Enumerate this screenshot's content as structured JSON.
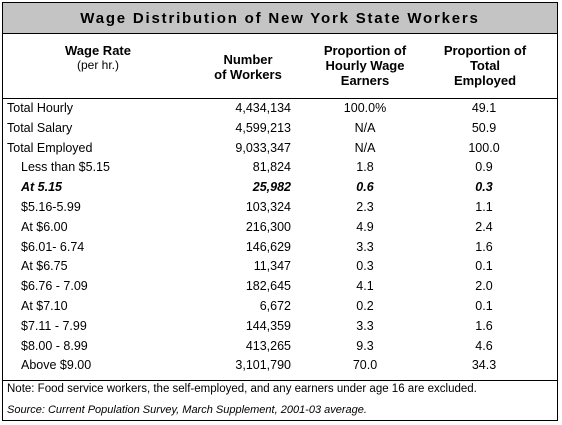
{
  "title": "Wage Distribution of  New York State Workers",
  "headers": {
    "col1": "Wage Rate",
    "col1_sub": "(per hr.)",
    "col2_line1": "Number",
    "col2_line2": "of Workers",
    "col3_line1": "Proportion of",
    "col3_line2": "Hourly Wage",
    "col3_line3": "Earners",
    "col4_line1": "Proportion of",
    "col4_line2": "Total",
    "col4_line3": "Employed"
  },
  "rows": [
    {
      "label": "Total Hourly",
      "workers": "4,434,134",
      "hourly": "100.0%",
      "total": "49.1"
    },
    {
      "label": "Total Salary",
      "workers": "4,599,213",
      "hourly": "N/A",
      "total": "50.9"
    },
    {
      "label": "Total Employed",
      "workers": "9,033,347",
      "hourly": "N/A",
      "total": "100.0"
    },
    {
      "label": "Less than $5.15",
      "workers": "81,824",
      "hourly": "1.8",
      "total": "0.9"
    },
    {
      "label": "At 5.15",
      "workers": "25,982",
      "hourly": "0.6",
      "total": "0.3"
    },
    {
      "label": "$5.16-5.99",
      "workers": "103,324",
      "hourly": "2.3",
      "total": "1.1"
    },
    {
      "label": "At $6.00",
      "workers": "216,300",
      "hourly": "4.9",
      "total": "2.4"
    },
    {
      "label": "$6.01- 6.74",
      "workers": "146,629",
      "hourly": "3.3",
      "total": "1.6"
    },
    {
      "label": "At $6.75",
      "workers": "11,347",
      "hourly": "0.3",
      "total": "0.1"
    },
    {
      "label": "$6.76 - 7.09",
      "workers": "182,645",
      "hourly": "4.1",
      "total": "2.0"
    },
    {
      "label": "At $7.10",
      "workers": "6,672",
      "hourly": "0.2",
      "total": "0.1"
    },
    {
      "label": "$7.11 - 7.99",
      "workers": "144,359",
      "hourly": "3.3",
      "total": "1.6"
    },
    {
      "label": "$8.00 - 8.99",
      "workers": "413,265",
      "hourly": "9.3",
      "total": "4.6"
    },
    {
      "label": "Above $9.00",
      "workers": "3,101,790",
      "hourly": "70.0",
      "total": "34.3"
    }
  ],
  "note": "Note:  Food service workers, the self-employed, and any earners under age 16 are excluded.",
  "source": "Source:  Current Population Survey, March Supplement, 2001-03 average."
}
